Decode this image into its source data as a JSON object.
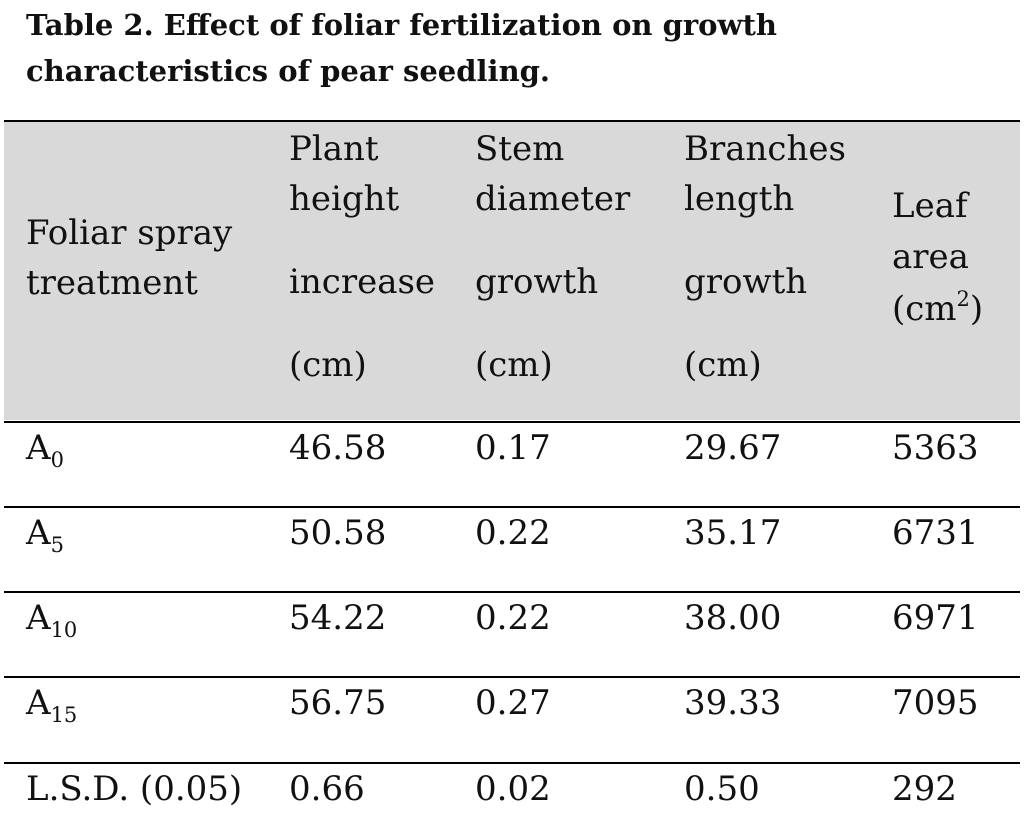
{
  "caption": {
    "line1": "Table 2. Effect of foliar fertilization on growth",
    "line2": "characteristics of pear seedling."
  },
  "table": {
    "headers": {
      "treatment": {
        "line1": "Foliar spray",
        "line2": "treatment"
      },
      "plant_height": {
        "line1": "Plant",
        "line2": "height",
        "line3": "increase",
        "line4": "(cm)"
      },
      "stem_diameter": {
        "line1": "Stem",
        "line2": "diameter",
        "line3": "growth",
        "line4": "(cm)"
      },
      "branches_length": {
        "line1": "Branches",
        "line2": "length",
        "line3": "growth",
        "line4": "(cm)"
      },
      "leaf_area": {
        "line1": "Leaf",
        "line2": "area",
        "line3_prefix": "(cm",
        "line3_sup": "2",
        "line3_suffix": ")"
      }
    },
    "rows": [
      {
        "label_main": "A",
        "label_sub": "0",
        "plant_height": "46.58",
        "stem_diameter": "0.17",
        "branches_length": "29.67",
        "leaf_area": "5363"
      },
      {
        "label_main": "A",
        "label_sub": "5",
        "plant_height": "50.58",
        "stem_diameter": "0.22",
        "branches_length": "35.17",
        "leaf_area": "6731"
      },
      {
        "label_main": "A",
        "label_sub": "10",
        "plant_height": "54.22",
        "stem_diameter": "0.22",
        "branches_length": "38.00",
        "leaf_area": "6971"
      },
      {
        "label_main": "A",
        "label_sub": "15",
        "plant_height": "56.75",
        "stem_diameter": "0.27",
        "branches_length": "39.33",
        "leaf_area": "7095"
      },
      {
        "label_main": "L.S.D. (0.05)",
        "label_sub": "",
        "plant_height": "0.66",
        "stem_diameter": "0.02",
        "branches_length": "0.50",
        "leaf_area": "292"
      }
    ]
  },
  "colors": {
    "header_background": "#d9d9d9",
    "rule": "#000000",
    "text": "#111111"
  }
}
